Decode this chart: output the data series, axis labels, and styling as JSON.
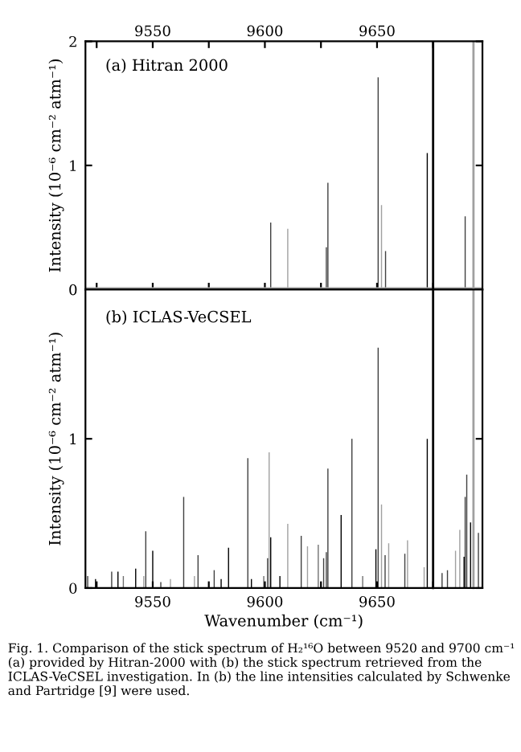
{
  "chart_data": [
    {
      "type": "bar",
      "ylabel": "Intensity (10⁻⁶ cm⁻² atm⁻¹)",
      "annotations": [
        "(a) Hitran 2000"
      ],
      "xlim": [
        9520,
        9697
      ],
      "xticks": [
        {
          "value": 9525,
          "label": null
        },
        9550,
        {
          "value": 9575,
          "label": null
        },
        9600,
        {
          "value": 9625,
          "label": null
        },
        9650,
        {
          "value": 9675,
          "label": null
        }
      ],
      "ylim": [
        0,
        2
      ],
      "yticks": [
        0,
        1,
        2
      ],
      "x": [
        9602.6,
        9610.2,
        9627.4,
        9628.1,
        9650.5,
        9652.0,
        9653.8,
        9672.4,
        9689.3
      ],
      "values": [
        0.54,
        0.49,
        0.34,
        0.86,
        1.71,
        0.68,
        0.31,
        1.1,
        0.59
      ],
      "colors": [
        "#404040",
        "#a0a0a0",
        "#404040",
        "#404040",
        "#404040",
        "#a0a0a0",
        "#404040",
        "#000000",
        "#404040"
      ],
      "ref_lines": [
        {
          "axis": "y",
          "value": 0,
          "color": "#a0a0a0"
        },
        {
          "axis": "x",
          "value": 9675,
          "color": "#000000"
        },
        {
          "axis": "x",
          "value": 9693,
          "color": "#a0a0a0"
        }
      ]
    },
    {
      "type": "bar",
      "xlabel": "Wavenumber (cm⁻¹)",
      "ylabel": "Intensity (10⁻⁶ cm⁻² atm⁻¹)",
      "annotations": [
        "(b) ICLAS-VeCSEL",
        "Fig. 1. Comparison of the stick spectrum of H₂¹⁶O between 9520 and 9700 cm⁻¹ (a) provided by Hitran-2000 with (b) the stick spectrum retrieved from the ICLAS-VeCSEL investigation. In (b) the line intensities calculated by Schwenke and Partridge [9] were used."
      ],
      "xlim": [
        9520,
        9697
      ],
      "xticks": [
        {
          "value": 9525,
          "label": null
        },
        9550,
        {
          "value": 9575,
          "label": null
        },
        9600,
        {
          "value": 9625,
          "label": null
        },
        9650,
        {
          "value": 9675,
          "label": null
        }
      ],
      "ylim": [
        0,
        2
      ],
      "yticks": [
        0,
        1
      ],
      "x": [
        9521.0,
        9524.5,
        9531.7,
        9534.5,
        9536.9,
        9542.4,
        9546.0,
        9546.9,
        9550.0,
        9553.6,
        9557.9,
        9563.8,
        9568.6,
        9570.2,
        9577.4,
        9580.5,
        9583.8,
        9592.4,
        9594.0,
        9599.5,
        9601.2,
        9601.9,
        9602.6,
        9606.7,
        9610.2,
        9616.2,
        9619.0,
        9623.8,
        9626.2,
        9627.4,
        9628.1,
        9634.0,
        9638.8,
        9643.6,
        9649.5,
        9650.5,
        9652.0,
        9653.6,
        9655.2,
        9662.4,
        9663.6,
        9671.0,
        9672.4,
        9679.0,
        9681.4,
        9685.0,
        9686.9,
        9688.8,
        9689.3,
        9690.0,
        9691.7,
        9695.2
      ],
      "values": [
        0.08,
        0.06,
        0.11,
        0.11,
        0.08,
        0.13,
        0.08,
        0.38,
        0.25,
        0.04,
        0.06,
        0.61,
        0.08,
        0.22,
        0.12,
        0.06,
        0.27,
        0.87,
        0.06,
        0.08,
        0.2,
        0.91,
        0.34,
        0.08,
        0.43,
        0.35,
        0.28,
        0.29,
        0.2,
        0.24,
        0.8,
        0.49,
        1.0,
        0.08,
        0.26,
        1.61,
        0.56,
        0.22,
        0.3,
        0.23,
        0.32,
        0.14,
        1.0,
        0.1,
        0.12,
        0.25,
        0.39,
        0.21,
        0.61,
        0.76,
        0.44,
        0.37
      ],
      "colors": [
        "#404040",
        "#000000",
        "#404040",
        "#000000",
        "#707070",
        "#000000",
        "#a0a0a0",
        "#404040",
        "#000000",
        "#404040",
        "#a0a0a0",
        "#404040",
        "#a0a0a0",
        "#404040",
        "#404040",
        "#000000",
        "#000000",
        "#404040",
        "#000000",
        "#707070",
        "#404040",
        "#a0a0a0",
        "#000000",
        "#000000",
        "#a0a0a0",
        "#404040",
        "#a0a0a0",
        "#707070",
        "#404040",
        "#404040",
        "#404040",
        "#000000",
        "#404040",
        "#707070",
        "#000000",
        "#404040",
        "#a0a0a0",
        "#404040",
        "#a0a0a0",
        "#404040",
        "#a0a0a0",
        "#a0a0a0",
        "#000000",
        "#404040",
        "#404040",
        "#a0a0a0",
        "#a0a0a0",
        "#000000",
        "#404040",
        "#404040",
        "#000000",
        "#404040"
      ],
      "ref_lines": [
        {
          "axis": "x",
          "value": 9675,
          "color": "#000000"
        },
        {
          "axis": "x",
          "value": 9693,
          "color": "#a0a0a0"
        }
      ]
    }
  ]
}
